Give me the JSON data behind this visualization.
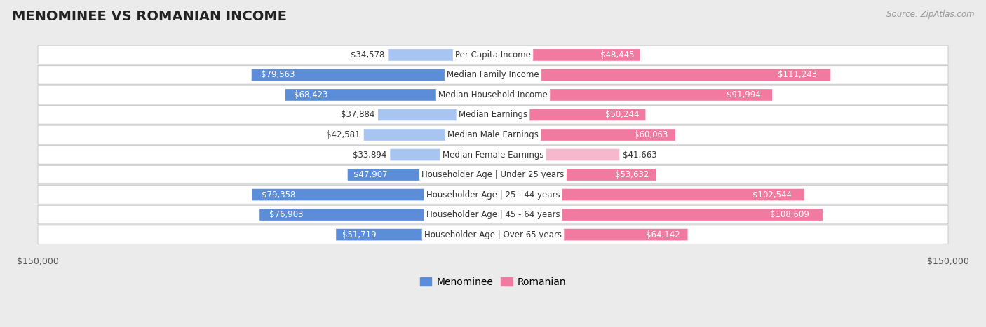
{
  "title": "MENOMINEE VS ROMANIAN INCOME",
  "source": "Source: ZipAtlas.com",
  "categories": [
    "Per Capita Income",
    "Median Family Income",
    "Median Household Income",
    "Median Earnings",
    "Median Male Earnings",
    "Median Female Earnings",
    "Householder Age | Under 25 years",
    "Householder Age | 25 - 44 years",
    "Householder Age | 45 - 64 years",
    "Householder Age | Over 65 years"
  ],
  "menominee_values": [
    34578,
    79563,
    68423,
    37884,
    42581,
    33894,
    47907,
    79358,
    76903,
    51719
  ],
  "romanian_values": [
    48445,
    111243,
    91994,
    50244,
    60063,
    41663,
    53632,
    102544,
    108609,
    64142
  ],
  "menominee_labels": [
    "$34,578",
    "$79,563",
    "$68,423",
    "$37,884",
    "$42,581",
    "$33,894",
    "$47,907",
    "$79,358",
    "$76,903",
    "$51,719"
  ],
  "romanian_labels": [
    "$48,445",
    "$111,243",
    "$91,994",
    "$50,244",
    "$60,063",
    "$41,663",
    "$53,632",
    "$102,544",
    "$108,609",
    "$64,142"
  ],
  "max_value": 150000,
  "menominee_color_dark": "#5b8dd9",
  "menominee_color_light": "#a8c4f0",
  "romanian_color_dark": "#f07aa0",
  "romanian_color_light": "#f5b8cc",
  "bg_color": "#ebebeb",
  "row_bg": "white",
  "row_border": "#cccccc",
  "label_fontsize": 8.5,
  "title_fontsize": 14,
  "legend_fontsize": 10,
  "dark_thresh_men": 45000,
  "dark_thresh_rom": 45000
}
